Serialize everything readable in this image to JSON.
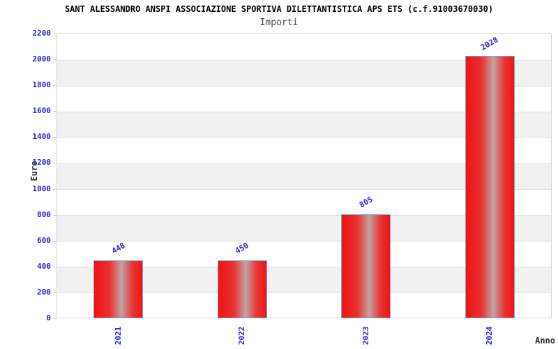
{
  "chart_data": {
    "type": "bar",
    "title": "SANT ALESSANDRO ANSPI ASSOCIAZIONE SPORTIVA DILETTANTISTICA APS ETS (c.f.91003670030)",
    "subtitle": "Importi",
    "xlabel": "Anno",
    "ylabel": "Euro",
    "categories": [
      "2021",
      "2022",
      "2023",
      "2024"
    ],
    "values": [
      448,
      450,
      805,
      2028
    ],
    "bar_labels": [
      "448",
      "450",
      "805",
      "2028"
    ],
    "ylim": [
      0,
      2200
    ],
    "ytick_step": 200,
    "ytick_labels": [
      "0",
      "200",
      "400",
      "600",
      "800",
      "1000",
      "1200",
      "1400",
      "1600",
      "1800",
      "2000",
      "2200"
    ],
    "grid": "horizontal-bands",
    "legend": "none",
    "colors": {
      "bar_fill_main": "#ee1414",
      "bar_fill_highlight": "#c2a2a2",
      "bar_border": "#72aae0",
      "tick_text": "#2323cc",
      "value_text": "#2b2bbf",
      "band_gray": "#f1f1f1",
      "plot_border": "#d4d4d4",
      "title_text": "#000000",
      "subtitle_text": "#4a4a4a",
      "axis_label_text": "#2b2b2b"
    }
  }
}
